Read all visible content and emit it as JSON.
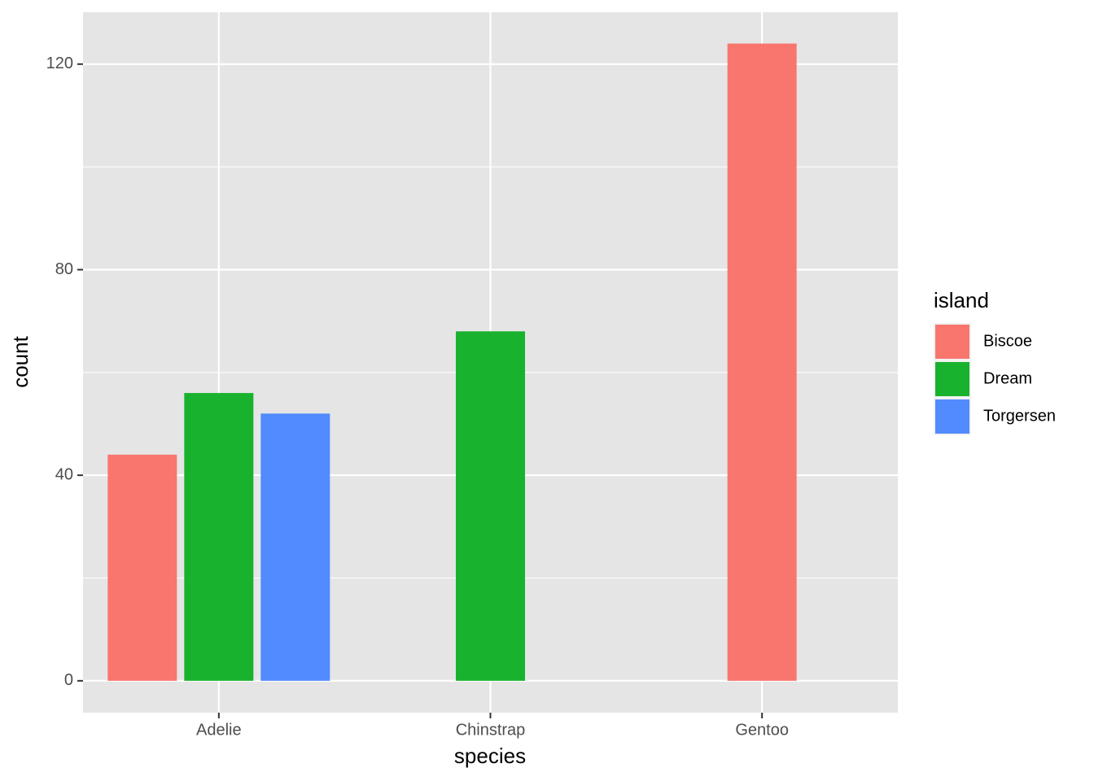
{
  "chart_data": {
    "type": "bar",
    "x_label": "species",
    "y_label": "count",
    "categories": [
      "Adelie",
      "Chinstrap",
      "Gentoo"
    ],
    "series": [
      {
        "name": "Biscoe",
        "color": "#f8766d",
        "values": [
          44,
          null,
          124
        ]
      },
      {
        "name": "Dream",
        "color": "#19b22f",
        "values": [
          56,
          68,
          null
        ]
      },
      {
        "name": "Torgersen",
        "color": "#518bfe",
        "values": [
          52,
          null,
          null
        ]
      }
    ],
    "legend_title": "island",
    "legend_position": "right",
    "ylim": [
      -6.2,
      130.1
    ],
    "yticks": [
      0,
      40,
      80,
      120
    ],
    "grid": true
  }
}
